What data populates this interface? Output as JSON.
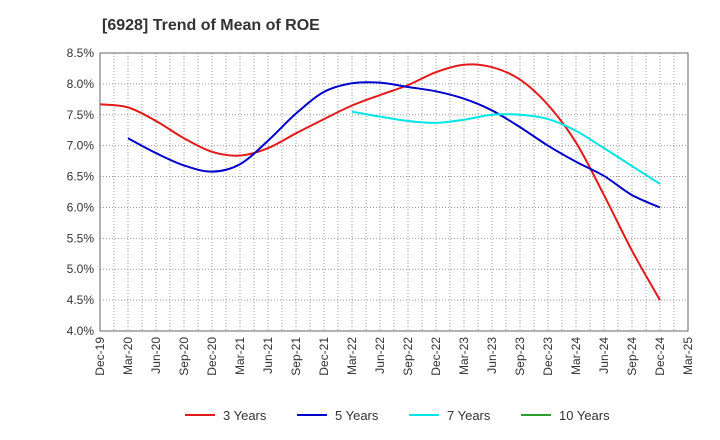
{
  "chart_data": {
    "type": "line",
    "title": "[6928]  Trend of Mean of ROE",
    "xlabel": "",
    "ylabel": "",
    "x_ticks": [
      "Dec-19",
      "Mar-20",
      "Jun-20",
      "Sep-20",
      "Dec-20",
      "Mar-21",
      "Jun-21",
      "Sep-21",
      "Dec-21",
      "Mar-22",
      "Jun-22",
      "Sep-22",
      "Dec-22",
      "Mar-23",
      "Jun-23",
      "Sep-23",
      "Dec-23",
      "Mar-24",
      "Jun-24",
      "Sep-24",
      "Dec-24",
      "Mar-25"
    ],
    "y_ticks": [
      "8.5%",
      "8.0%",
      "7.5%",
      "7.0%",
      "6.5%",
      "6.0%",
      "5.5%",
      "5.0%",
      "4.5%",
      "4.0%"
    ],
    "ylim": [
      4.0,
      8.5
    ],
    "grid": true,
    "legend_position": "bottom",
    "series": [
      {
        "name": "3 Years",
        "color": "#e31a1c",
        "x": [
          "Dec-19",
          "Mar-20",
          "Jun-20",
          "Sep-20",
          "Dec-20",
          "Mar-21",
          "Jun-21",
          "Sep-21",
          "Dec-21",
          "Mar-22",
          "Jun-22",
          "Sep-22",
          "Dec-22",
          "Mar-23",
          "Jun-23",
          "Sep-23",
          "Dec-23",
          "Mar-24",
          "Jun-24",
          "Sep-24",
          "Dec-24"
        ],
        "values": [
          7.67,
          7.62,
          7.4,
          7.12,
          6.9,
          6.84,
          6.96,
          7.2,
          7.43,
          7.65,
          7.82,
          7.98,
          8.19,
          8.31,
          8.27,
          8.07,
          7.66,
          7.05,
          6.2,
          5.3,
          4.5
        ]
      },
      {
        "name": "5 Years",
        "color": "#0000cc",
        "x": [
          "Mar-20",
          "Jun-20",
          "Sep-20",
          "Dec-20",
          "Mar-21",
          "Jun-21",
          "Sep-21",
          "Dec-21",
          "Mar-22",
          "Jun-22",
          "Sep-22",
          "Dec-22",
          "Mar-23",
          "Jun-23",
          "Sep-23",
          "Dec-23",
          "Mar-24",
          "Jun-24",
          "Sep-24",
          "Dec-24"
        ],
        "values": [
          7.12,
          6.88,
          6.68,
          6.58,
          6.7,
          7.08,
          7.52,
          7.87,
          8.01,
          8.02,
          7.95,
          7.88,
          7.76,
          7.57,
          7.3,
          7.0,
          6.74,
          6.51,
          6.2,
          6.0
        ]
      },
      {
        "name": "7 Years",
        "color": "#00e5e5",
        "x": [
          "Mar-22",
          "Jun-22",
          "Sep-22",
          "Dec-22",
          "Mar-23",
          "Jun-23",
          "Sep-23",
          "Dec-23",
          "Mar-24",
          "Jun-24",
          "Sep-24",
          "Dec-24"
        ],
        "values": [
          7.55,
          7.47,
          7.4,
          7.37,
          7.42,
          7.5,
          7.5,
          7.43,
          7.24,
          6.96,
          6.67,
          6.38
        ]
      },
      {
        "name": "10 Years",
        "color": "#2ca02c",
        "x": [],
        "values": []
      }
    ]
  }
}
